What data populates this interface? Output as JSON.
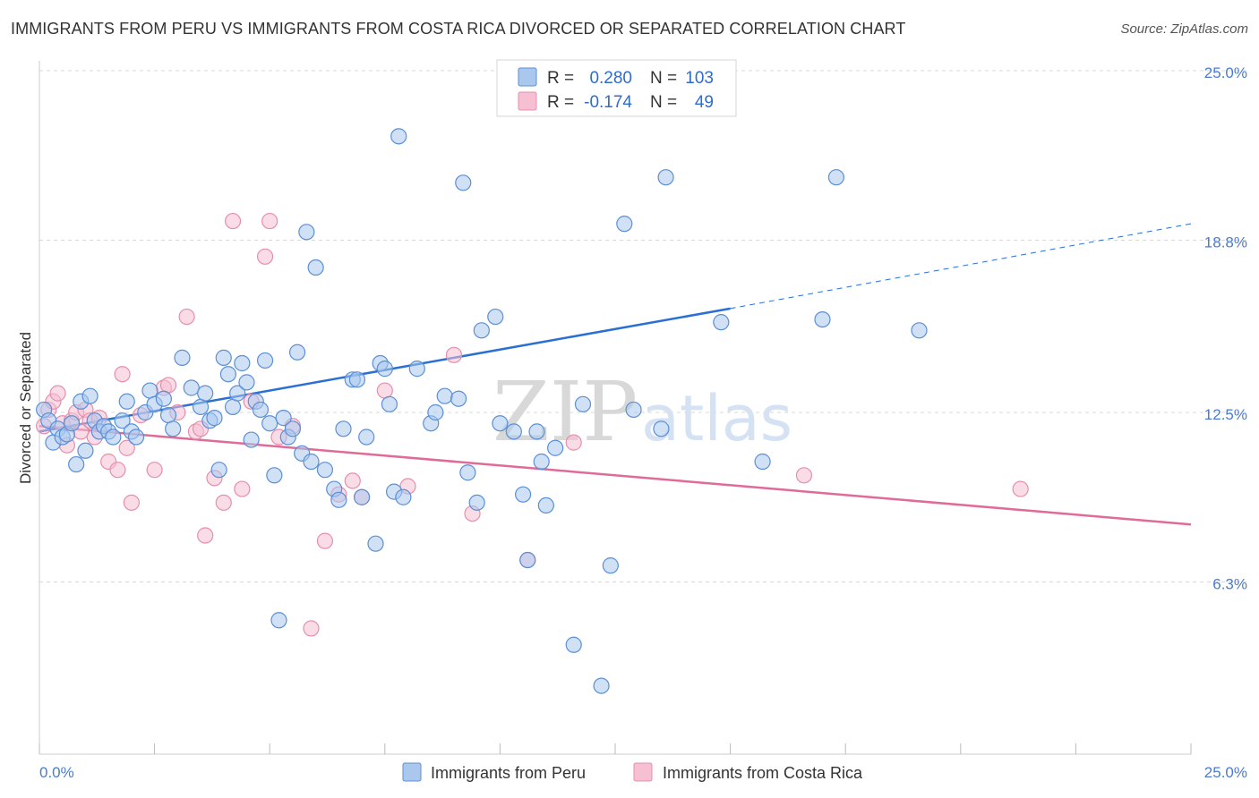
{
  "title": "IMMIGRANTS FROM PERU VS IMMIGRANTS FROM COSTA RICA DIVORCED OR SEPARATED CORRELATION CHART",
  "source": "Source: ZipAtlas.com",
  "watermark": {
    "zip": "ZIP",
    "atlas": "atlas"
  },
  "colors": {
    "peru_fill": "#aac8ee",
    "peru_stroke": "#5b8fd6",
    "peru_line": "#2a6fd2",
    "cr_fill": "#f6bfd2",
    "cr_stroke": "#e58fae",
    "cr_line": "#e06a98",
    "grid": "#d8d8d8",
    "axis_label": "#4a7bd0"
  },
  "legend": {
    "r_label": "R =",
    "n_label": "N =",
    "peru_r": "0.280",
    "peru_n": "103",
    "cr_r": "-0.174",
    "cr_n": "49"
  },
  "bottom_legend": {
    "peru": "Immigrants from Peru",
    "cr": "Immigrants from Costa Rica"
  },
  "chart_data": {
    "type": "scatter",
    "title": "IMMIGRANTS FROM PERU VS IMMIGRANTS FROM COSTA RICA DIVORCED OR SEPARATED CORRELATION CHART",
    "xlabel": "",
    "ylabel": "Divorced or Separated",
    "xlim": [
      0,
      25
    ],
    "ylim": [
      0,
      25
    ],
    "x_tick_labels": [
      "0.0%",
      "25.0%"
    ],
    "y_ticks": [
      6.3,
      12.5,
      18.8,
      25.0
    ],
    "y_tick_labels": [
      "6.3%",
      "12.5%",
      "18.8%",
      "25.0%"
    ],
    "series": [
      {
        "name": "Immigrants from Peru",
        "r": 0.28,
        "n": 103,
        "trend": {
          "x0": 0,
          "y0": 11.8,
          "x1": 15.0,
          "y1": 16.3,
          "dash_to_x": 25.0,
          "dash_to_y": 19.4
        },
        "points": [
          [
            0.1,
            12.6
          ],
          [
            0.2,
            12.2
          ],
          [
            0.3,
            11.4
          ],
          [
            0.4,
            11.9
          ],
          [
            0.5,
            11.6
          ],
          [
            0.6,
            11.7
          ],
          [
            0.7,
            12.1
          ],
          [
            0.8,
            10.6
          ],
          [
            0.9,
            12.9
          ],
          [
            1.0,
            11.1
          ],
          [
            1.1,
            13.1
          ],
          [
            1.2,
            12.2
          ],
          [
            1.3,
            11.8
          ],
          [
            1.4,
            12.0
          ],
          [
            1.5,
            11.8
          ],
          [
            1.6,
            11.6
          ],
          [
            1.8,
            12.2
          ],
          [
            1.9,
            12.9
          ],
          [
            2.0,
            11.8
          ],
          [
            2.1,
            11.6
          ],
          [
            2.3,
            12.5
          ],
          [
            2.4,
            13.3
          ],
          [
            2.5,
            12.8
          ],
          [
            2.7,
            13.0
          ],
          [
            2.8,
            12.4
          ],
          [
            2.9,
            11.9
          ],
          [
            3.1,
            14.5
          ],
          [
            3.3,
            13.4
          ],
          [
            3.5,
            12.7
          ],
          [
            3.6,
            13.2
          ],
          [
            3.7,
            12.2
          ],
          [
            3.8,
            12.3
          ],
          [
            3.9,
            10.4
          ],
          [
            4.0,
            14.5
          ],
          [
            4.1,
            13.9
          ],
          [
            4.2,
            12.7
          ],
          [
            4.3,
            13.2
          ],
          [
            4.4,
            14.3
          ],
          [
            4.5,
            13.6
          ],
          [
            4.6,
            11.5
          ],
          [
            4.7,
            12.9
          ],
          [
            4.8,
            12.6
          ],
          [
            4.9,
            14.4
          ],
          [
            5.0,
            12.1
          ],
          [
            5.1,
            10.2
          ],
          [
            5.2,
            4.9
          ],
          [
            5.3,
            12.3
          ],
          [
            5.4,
            11.6
          ],
          [
            5.5,
            11.9
          ],
          [
            5.6,
            14.7
          ],
          [
            5.7,
            11.0
          ],
          [
            5.8,
            19.1
          ],
          [
            5.9,
            10.7
          ],
          [
            6.0,
            17.8
          ],
          [
            6.2,
            10.4
          ],
          [
            6.4,
            9.7
          ],
          [
            6.5,
            9.3
          ],
          [
            6.6,
            11.9
          ],
          [
            6.8,
            13.7
          ],
          [
            6.9,
            13.7
          ],
          [
            7.0,
            9.4
          ],
          [
            7.1,
            11.6
          ],
          [
            7.3,
            7.7
          ],
          [
            7.4,
            14.3
          ],
          [
            7.5,
            14.1
          ],
          [
            7.6,
            12.8
          ],
          [
            7.7,
            9.6
          ],
          [
            7.8,
            22.6
          ],
          [
            7.9,
            9.4
          ],
          [
            8.2,
            14.1
          ],
          [
            8.5,
            12.1
          ],
          [
            8.6,
            12.5
          ],
          [
            8.8,
            13.1
          ],
          [
            9.1,
            13.0
          ],
          [
            9.2,
            20.9
          ],
          [
            9.3,
            10.3
          ],
          [
            9.5,
            9.2
          ],
          [
            9.6,
            15.5
          ],
          [
            9.9,
            16.0
          ],
          [
            10.0,
            12.1
          ],
          [
            10.3,
            11.8
          ],
          [
            10.4,
            24.2
          ],
          [
            10.5,
            9.5
          ],
          [
            10.6,
            7.1
          ],
          [
            10.8,
            11.8
          ],
          [
            10.9,
            10.7
          ],
          [
            11.0,
            9.1
          ],
          [
            11.2,
            11.2
          ],
          [
            11.6,
            4.0
          ],
          [
            11.8,
            12.8
          ],
          [
            12.2,
            2.5
          ],
          [
            12.4,
            6.9
          ],
          [
            12.7,
            19.4
          ],
          [
            12.9,
            12.6
          ],
          [
            13.5,
            11.9
          ],
          [
            13.6,
            21.1
          ],
          [
            14.8,
            15.8
          ],
          [
            15.7,
            10.7
          ],
          [
            17.0,
            15.9
          ],
          [
            17.3,
            21.1
          ],
          [
            19.1,
            15.5
          ]
        ]
      },
      {
        "name": "Immigrants from Costa Rica",
        "r": -0.174,
        "n": 49,
        "trend": {
          "x0": 0,
          "y0": 12.0,
          "x1": 25.0,
          "y1": 8.4
        },
        "points": [
          [
            0.1,
            12.0
          ],
          [
            0.2,
            12.6
          ],
          [
            0.3,
            12.9
          ],
          [
            0.4,
            13.2
          ],
          [
            0.5,
            12.1
          ],
          [
            0.6,
            11.3
          ],
          [
            0.7,
            12.2
          ],
          [
            0.8,
            12.5
          ],
          [
            0.9,
            11.8
          ],
          [
            1.0,
            12.6
          ],
          [
            1.1,
            12.2
          ],
          [
            1.2,
            11.6
          ],
          [
            1.3,
            12.3
          ],
          [
            1.5,
            10.7
          ],
          [
            1.7,
            10.4
          ],
          [
            1.8,
            13.9
          ],
          [
            1.9,
            11.2
          ],
          [
            2.0,
            9.2
          ],
          [
            2.2,
            12.4
          ],
          [
            2.5,
            10.4
          ],
          [
            2.7,
            13.4
          ],
          [
            2.8,
            13.5
          ],
          [
            3.0,
            12.5
          ],
          [
            3.2,
            16.0
          ],
          [
            3.4,
            11.8
          ],
          [
            3.6,
            8.0
          ],
          [
            3.8,
            10.1
          ],
          [
            4.0,
            9.2
          ],
          [
            4.2,
            19.5
          ],
          [
            4.4,
            9.7
          ],
          [
            4.6,
            12.9
          ],
          [
            4.9,
            18.2
          ],
          [
            5.0,
            19.5
          ],
          [
            5.2,
            11.6
          ],
          [
            5.5,
            12.0
          ],
          [
            5.9,
            4.6
          ],
          [
            6.2,
            7.8
          ],
          [
            6.5,
            9.5
          ],
          [
            6.8,
            10.0
          ],
          [
            7.0,
            9.4
          ],
          [
            7.5,
            13.3
          ],
          [
            8.0,
            9.8
          ],
          [
            9.0,
            14.6
          ],
          [
            9.4,
            8.8
          ],
          [
            10.6,
            7.1
          ],
          [
            11.6,
            11.4
          ],
          [
            16.6,
            10.2
          ],
          [
            21.3,
            9.7
          ],
          [
            3.5,
            11.9
          ]
        ]
      }
    ]
  }
}
